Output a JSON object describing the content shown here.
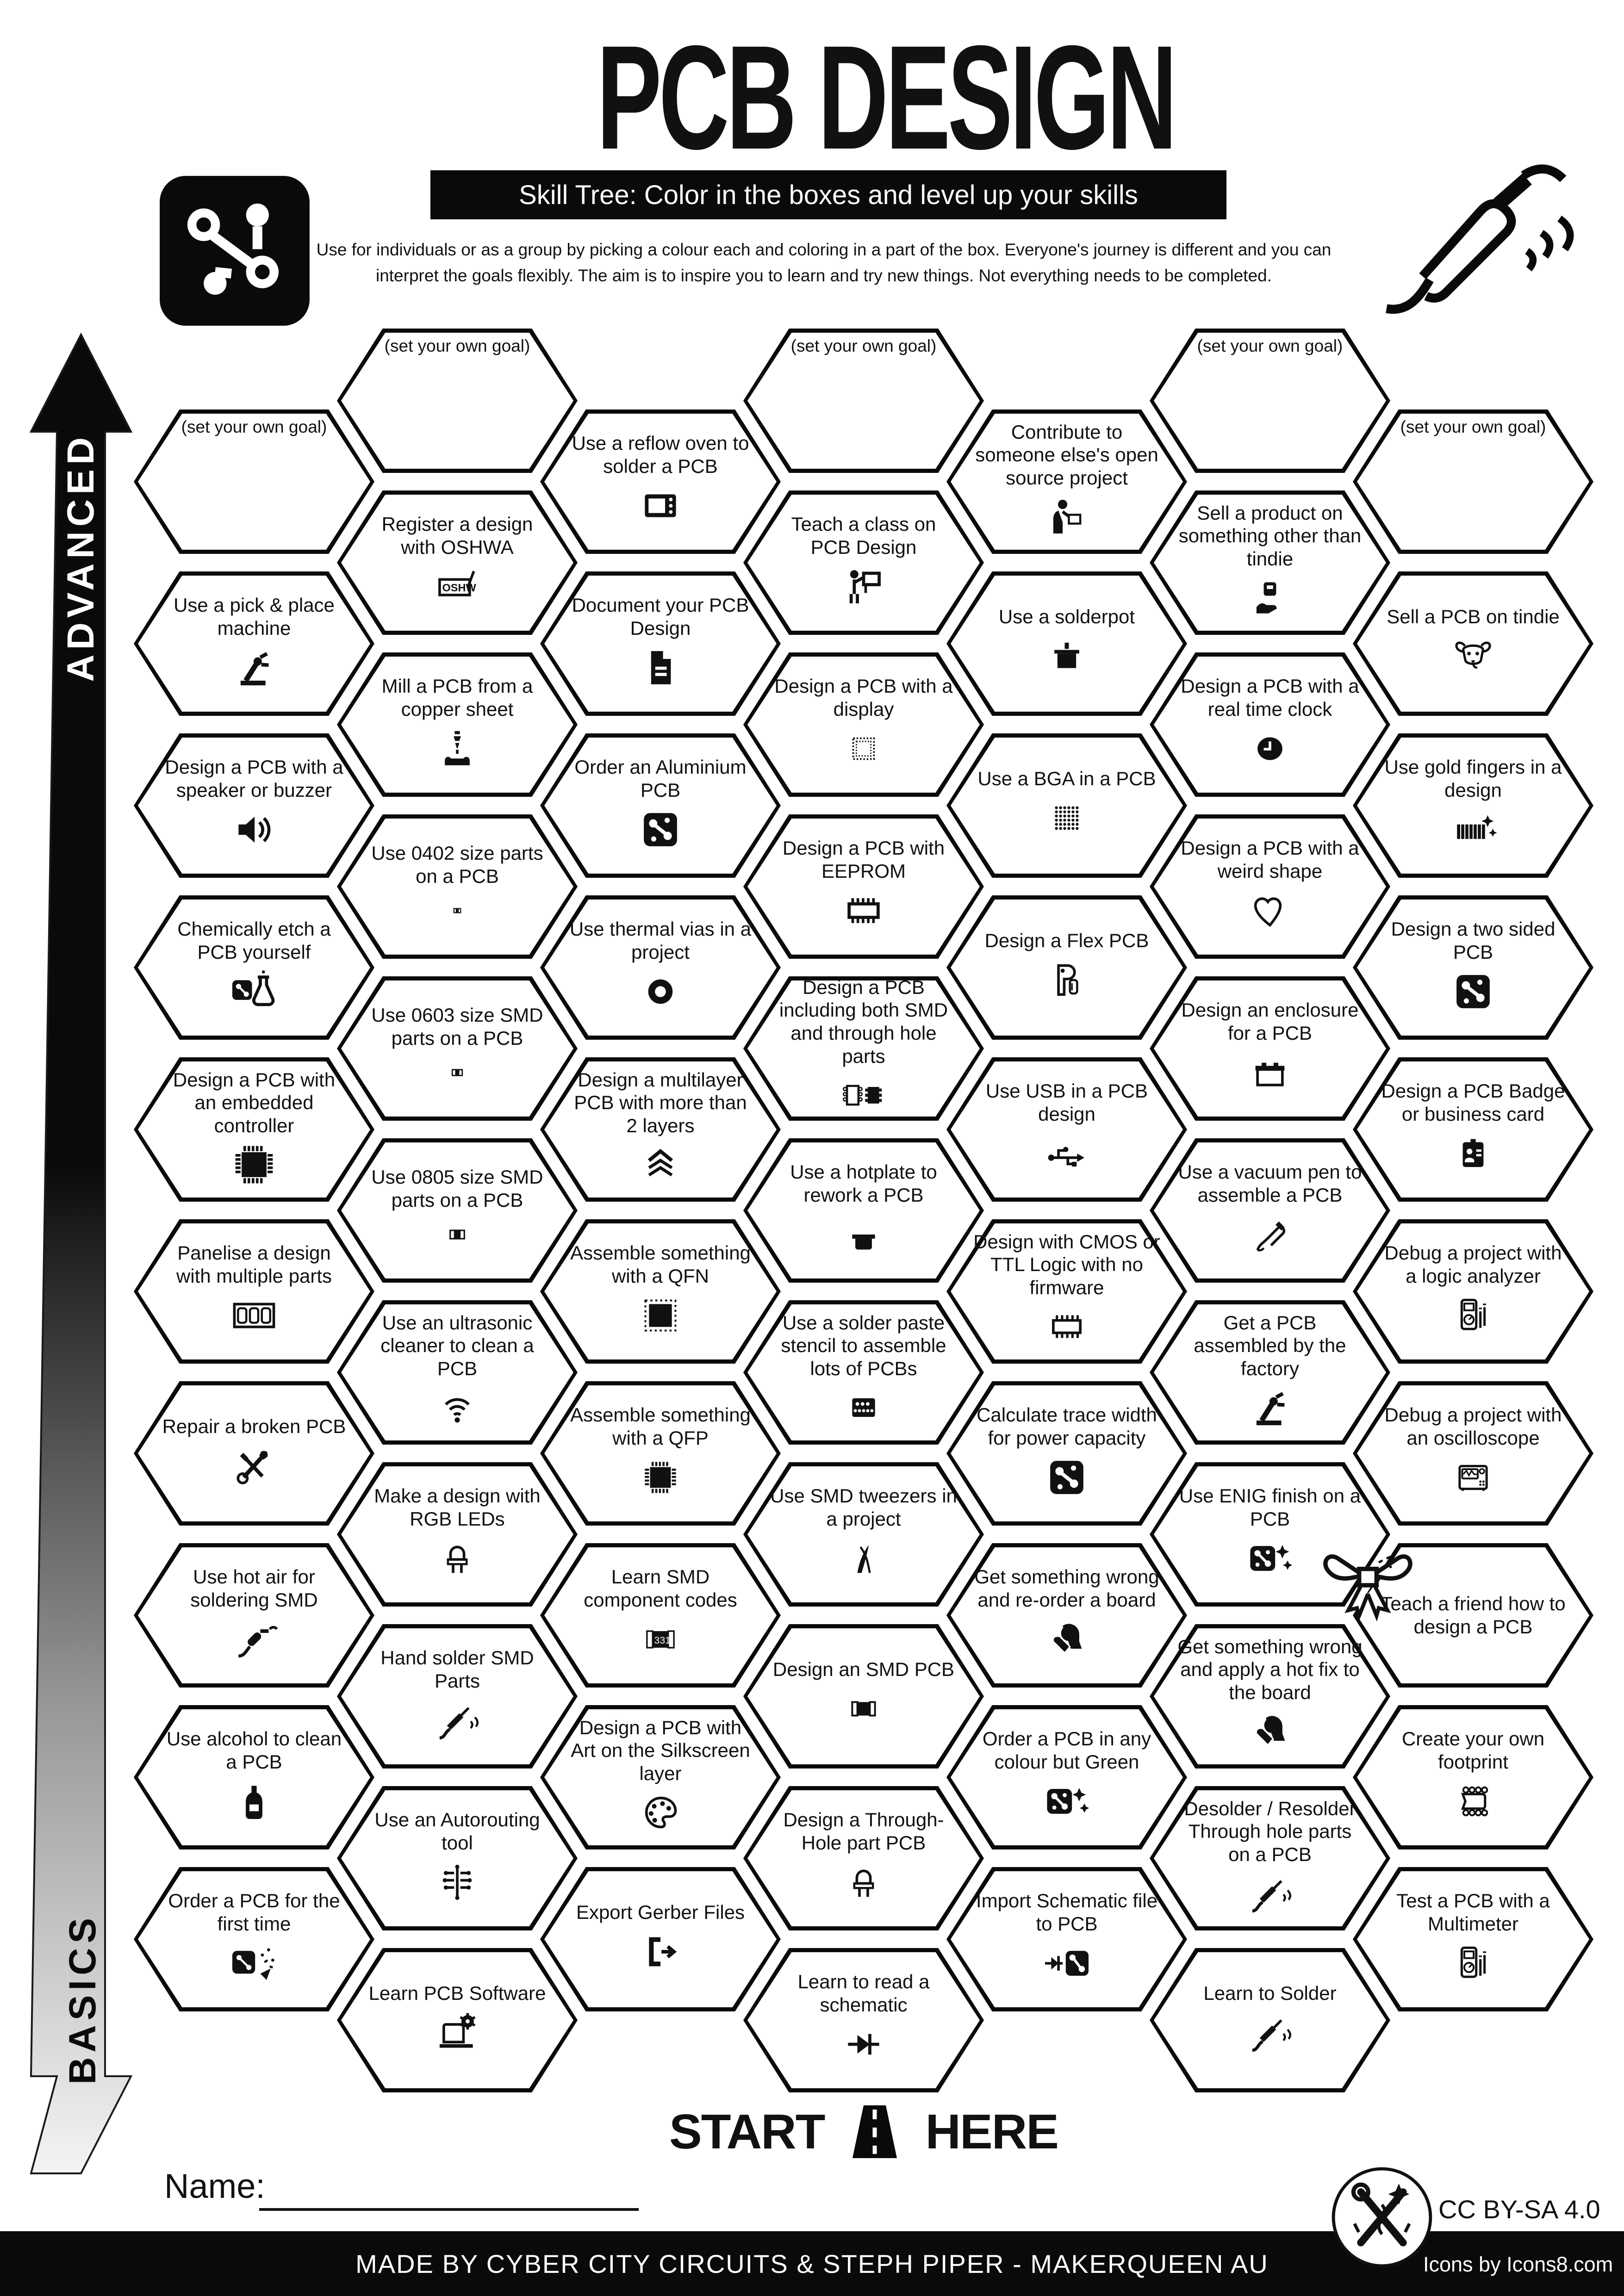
{
  "header": {
    "title": "PCB DESIGN",
    "subtitle": "Skill Tree:  Color in the boxes and level up your skills",
    "description": "Use for individuals or as a group by picking a colour each and coloring in a part of the box.  Everyone's journey is different and you can interpret the goals flexibly.  The aim is to inspire you to learn and try new things. Not everything needs to be completed."
  },
  "axis": {
    "advanced": "ADVANCED",
    "basics": "BASICS"
  },
  "start_here": {
    "start": "START",
    "here": "HERE"
  },
  "name_label": "Name:",
  "footer": {
    "credit": "MADE BY CYBER CITY CIRCUITS & STEPH PIPER  -  MAKERQUEEN AU",
    "license": "CC BY-SA 4.0",
    "icons_credit": "Icons by Icons8.com"
  },
  "goal_label": "(set your own goal)",
  "colors": {
    "ink": "#0a0a0a",
    "paper": "#ffffff"
  },
  "columns": [
    {
      "items": [
        {
          "goal": true,
          "label": "(set your own goal)"
        },
        {
          "label": "Use a pick & place machine",
          "icon": "robot-arm"
        },
        {
          "label": "Design a PCB with a speaker or buzzer",
          "icon": "speaker"
        },
        {
          "label": "Chemically etch a PCB yourself",
          "icon": "etch"
        },
        {
          "label": "Design a PCB with an embedded controller",
          "icon": "chip"
        },
        {
          "label": "Panelise a design with multiple parts",
          "icon": "panel"
        },
        {
          "label": "Repair a broken PCB",
          "icon": "tools"
        },
        {
          "label": "Use hot air for soldering SMD",
          "icon": "hot-air"
        },
        {
          "label": "Use alcohol to clean a PCB",
          "icon": "bottle"
        },
        {
          "label": "Order a PCB for the first time",
          "icon": "pcb-party"
        }
      ]
    },
    {
      "items": [
        {
          "goal": true,
          "label": "(set your own goal)"
        },
        {
          "label": "Register a design with OSHWA",
          "icon": "oshw"
        },
        {
          "label": "Mill a PCB from a copper sheet",
          "icon": "mill"
        },
        {
          "label": "Use 0402 size parts on a PCB",
          "icon": "r0402"
        },
        {
          "label": "Use 0603 size SMD parts on a PCB",
          "icon": "r0603"
        },
        {
          "label": "Use 0805 size SMD parts on a PCB",
          "icon": "r0805"
        },
        {
          "label": "Use an ultrasonic cleaner to clean a PCB",
          "icon": "ultrasonic"
        },
        {
          "label": "Make a design with RGB LEDs",
          "icon": "led"
        },
        {
          "label": "Hand solder SMD Parts",
          "icon": "iron"
        },
        {
          "label": "Use an Autorouting tool",
          "icon": "autoroute"
        },
        {
          "label": "Learn PCB Software",
          "icon": "laptop-gear"
        }
      ]
    },
    {
      "items": [
        {
          "label": "Use a reflow oven to solder a PCB",
          "icon": "oven"
        },
        {
          "label": "Document your PCB Design",
          "icon": "document"
        },
        {
          "label": "Order an Aluminium PCB",
          "icon": "pcb"
        },
        {
          "label": "Use thermal vias in a project",
          "icon": "via"
        },
        {
          "label": "Design a multilayer PCB with more than 2 layers",
          "icon": "layers"
        },
        {
          "label": "Assemble something with a QFN",
          "icon": "qfn"
        },
        {
          "label": "Assemble something with a QFP",
          "icon": "qfp"
        },
        {
          "label": "Learn SMD component codes",
          "icon": "code331"
        },
        {
          "label": "Design a PCB with Art on the Silkscreen layer",
          "icon": "palette"
        },
        {
          "label": "Export Gerber Files",
          "icon": "export"
        }
      ]
    },
    {
      "items": [
        {
          "goal": true,
          "label": "(set your own goal)"
        },
        {
          "label": "Teach a class on PCB Design",
          "icon": "teacher"
        },
        {
          "label": "Design a PCB with a display",
          "icon": "display"
        },
        {
          "label": "Design a PCB with EEPROM",
          "icon": "eeprom"
        },
        {
          "label": "Design a PCB including both SMD and through hole parts",
          "icon": "smd-tht"
        },
        {
          "label": "Use a hotplate to rework a PCB",
          "icon": "hotplate"
        },
        {
          "label": "Use a solder paste stencil to assemble lots of PCBs",
          "icon": "stencil"
        },
        {
          "label": "Use SMD tweezers in a project",
          "icon": "tweezers"
        },
        {
          "label": "Design an SMD PCB",
          "icon": "smd"
        },
        {
          "label": "Design a Through-Hole part PCB",
          "icon": "led"
        },
        {
          "label": "Learn to read a schematic",
          "icon": "diode"
        }
      ]
    },
    {
      "items": [
        {
          "label": "Contribute to someone else's open source project",
          "icon": "contribute"
        },
        {
          "label": "Use a solderpot",
          "icon": "solderpot"
        },
        {
          "label": "Use a BGA in a PCB",
          "icon": "bga"
        },
        {
          "label": "Design a Flex PCB",
          "icon": "flex"
        },
        {
          "label": "Use USB in a PCB design",
          "icon": "usb"
        },
        {
          "label": "Design with CMOS or TTL Logic with no firmware",
          "icon": "dip"
        },
        {
          "label": "Calculate trace width for power capacity",
          "icon": "pcb"
        },
        {
          "label": "Get something wrong and re-order a board",
          "icon": "facepalm"
        },
        {
          "label": "Order a PCB in any colour but Green",
          "icon": "pcb-sparkle"
        },
        {
          "label": "Import Schematic file to PCB",
          "icon": "diode-pcb"
        }
      ]
    },
    {
      "items": [
        {
          "goal": true,
          "label": "(set your own goal)"
        },
        {
          "label": "Sell a product on something other than tindie",
          "icon": "hand-box"
        },
        {
          "label": "Design a PCB with a real time clock",
          "icon": "clock"
        },
        {
          "label": "Design a PCB with a weird shape",
          "icon": "heart"
        },
        {
          "label": "Design an enclosure for a PCB",
          "icon": "enclosure"
        },
        {
          "label": "Use a vacuum pen to assemble a PCB",
          "icon": "vacuum-pen"
        },
        {
          "label": "Get a PCB assembled by the factory",
          "icon": "robot-arm"
        },
        {
          "label": "Use ENIG finish on a PCB",
          "icon": "pcb-sparkle"
        },
        {
          "label": "Get something wrong and apply a hot fix to the board",
          "icon": "facepalm"
        },
        {
          "label": "Desolder / Resolder Through hole parts on a PCB",
          "icon": "iron"
        },
        {
          "label": "Learn to Solder",
          "icon": "iron"
        }
      ]
    },
    {
      "items": [
        {
          "goal": true,
          "label": "(set your own goal)"
        },
        {
          "label": "Sell a PCB on tindie",
          "icon": "dog"
        },
        {
          "label": "Use gold fingers in a design",
          "icon": "gold-fingers"
        },
        {
          "label": "Design a two sided PCB",
          "icon": "pcb"
        },
        {
          "label": "Design a PCB Badge or business card",
          "icon": "badge"
        },
        {
          "label": "Debug a project with a logic analyzer",
          "icon": "meter"
        },
        {
          "label": "Debug a project with an oscilloscope",
          "icon": "scope"
        },
        {
          "label": "Teach a friend how to design a PCB",
          "icon": null
        },
        {
          "label": "Create your own footprint",
          "icon": "footprint"
        },
        {
          "label": "Test a PCB with a Multimeter",
          "icon": "meter"
        }
      ]
    }
  ]
}
